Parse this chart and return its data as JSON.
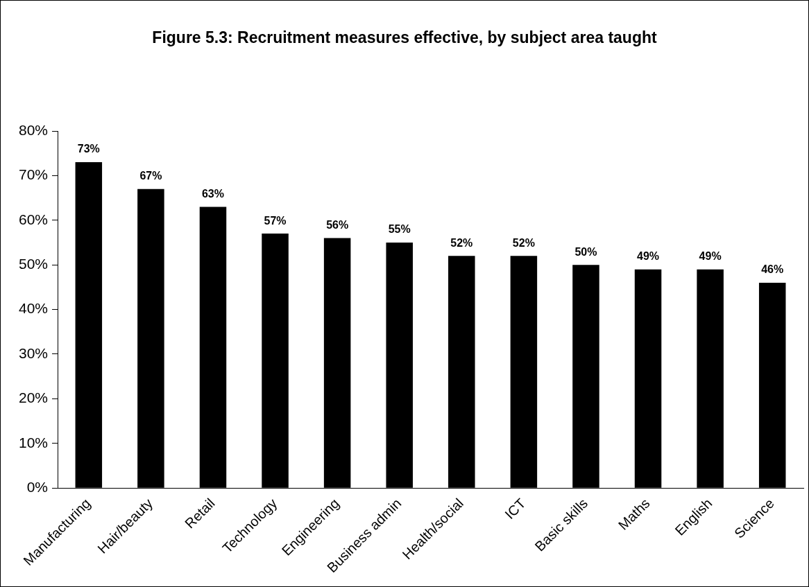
{
  "chart_data": {
    "type": "bar",
    "title": "Figure 5.3: Recruitment measures effective, by subject area taught",
    "categories": [
      "Manufacturing",
      "Hair/beauty",
      "Retail",
      "Technology",
      "Engineering",
      "Business admin",
      "Health/social",
      "ICT",
      "Basic skills",
      "Maths",
      "English",
      "Science"
    ],
    "values": [
      73,
      67,
      63,
      57,
      56,
      55,
      52,
      52,
      50,
      49,
      49,
      46
    ],
    "value_labels": [
      "73%",
      "67%",
      "63%",
      "57%",
      "56%",
      "55%",
      "52%",
      "52%",
      "50%",
      "49%",
      "49%",
      "46%"
    ],
    "color": "#000000",
    "ylim": [
      0,
      80
    ],
    "yticks": [
      {
        "value": 0,
        "label": "0%"
      },
      {
        "value": 10,
        "label": "10%"
      },
      {
        "value": 20,
        "label": "20%"
      },
      {
        "value": 30,
        "label": "30%"
      },
      {
        "value": 40,
        "label": "40%"
      },
      {
        "value": 50,
        "label": "50%"
      },
      {
        "value": 60,
        "label": "60%"
      },
      {
        "value": 70,
        "label": "70%"
      },
      {
        "value": 80,
        "label": "80%"
      }
    ],
    "grid": false,
    "legend": false
  }
}
